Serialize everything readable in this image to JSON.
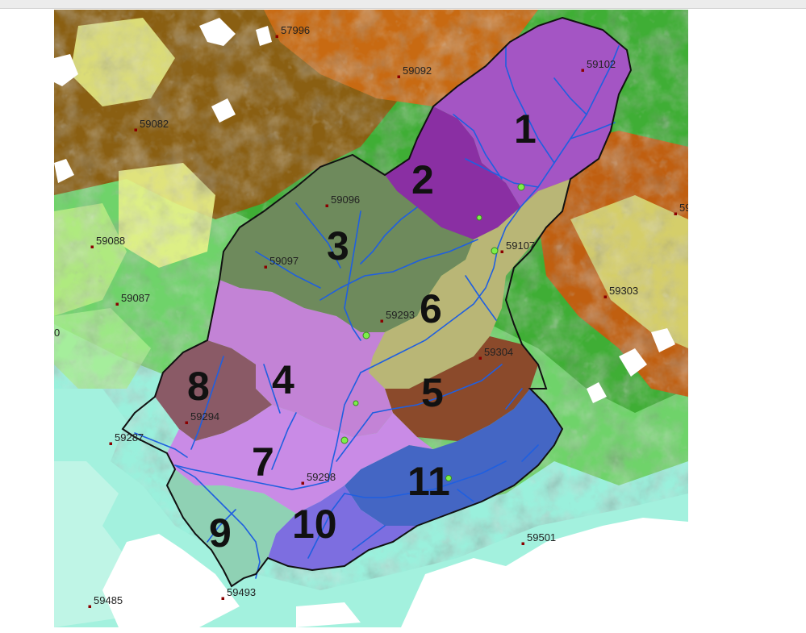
{
  "stations": [
    {
      "id": "57996",
      "label": "57996"
    },
    {
      "id": "59092",
      "label": "59092"
    },
    {
      "id": "59102",
      "label": "59102"
    },
    {
      "id": "59082",
      "label": "59082"
    },
    {
      "id": "59096",
      "label": "59096"
    },
    {
      "id": "59088",
      "label": "59088"
    },
    {
      "id": "59097",
      "label": "59097"
    },
    {
      "id": "59087",
      "label": "59087"
    },
    {
      "id": "59107",
      "label": "59107"
    },
    {
      "id": "59303",
      "label": "59303"
    },
    {
      "id": "59293",
      "label": "59293"
    },
    {
      "id": "59304",
      "label": "59304"
    },
    {
      "id": "59294",
      "label": "59294"
    },
    {
      "id": "59287",
      "label": "59287"
    },
    {
      "id": "59298",
      "label": "59298"
    },
    {
      "id": "59501",
      "label": "59501"
    },
    {
      "id": "59485",
      "label": "59485"
    },
    {
      "id": "59493",
      "label": "59493"
    },
    {
      "id": "59_edge_right",
      "label": "59"
    },
    {
      "id": "edge_left",
      "label": "0"
    }
  ],
  "subbasins": [
    {
      "id": "1",
      "label": "1",
      "color": "#a455c4"
    },
    {
      "id": "2",
      "label": "2",
      "color": "#8a2fa3"
    },
    {
      "id": "3",
      "label": "3",
      "color": "#6e8a5c"
    },
    {
      "id": "4",
      "label": "4",
      "color": "#c383d6"
    },
    {
      "id": "5",
      "label": "5",
      "color": "#8b4a2b"
    },
    {
      "id": "6",
      "label": "6",
      "color": "#b9b676"
    },
    {
      "id": "7",
      "label": "7",
      "color": "#c98be6"
    },
    {
      "id": "8",
      "label": "8",
      "color": "#8a5a66"
    },
    {
      "id": "9",
      "label": "9",
      "color": "#8fd1b4"
    },
    {
      "id": "10",
      "label": "10",
      "color": "#7d6ee0"
    },
    {
      "id": "11",
      "label": "11",
      "color": "#4466c4"
    }
  ],
  "colors": {
    "river": "#1f5fe0",
    "basin_outline": "#111111",
    "outlet_marker": "#7cf04a",
    "station_marker": "#8b0000",
    "ocean_cyan": "#9df0e0",
    "lowland_green": "#46b83e",
    "highland_orange": "#d2690f",
    "peak_white": "#ffffff"
  }
}
